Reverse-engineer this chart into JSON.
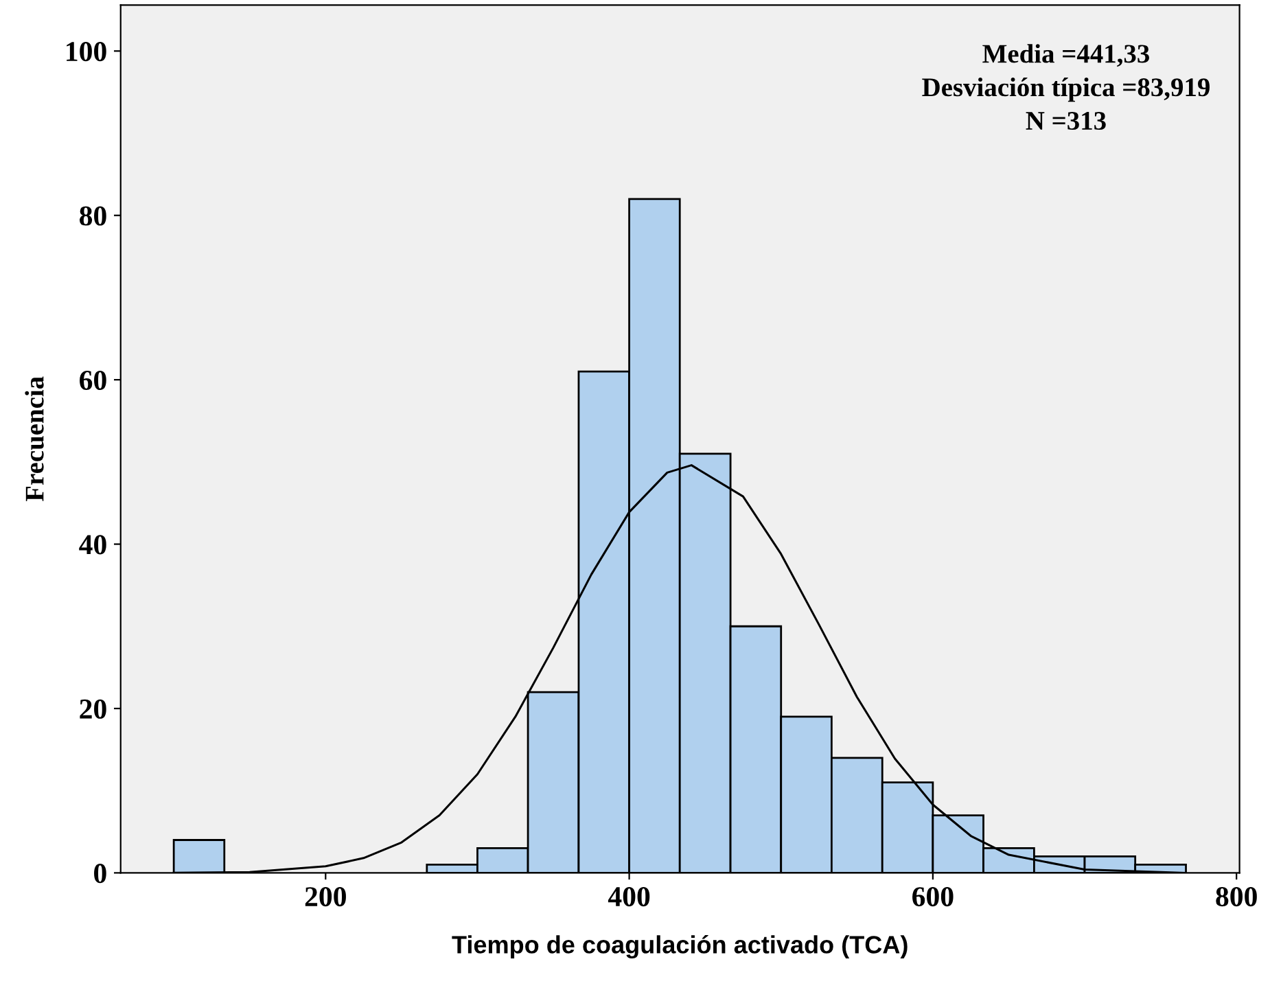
{
  "chart_data": {
    "type": "histogram",
    "xlabel": "Tiempo de coagulación activado (TCA)",
    "ylabel": "Frecuencia",
    "bins": [
      100,
      133.3,
      166.7,
      200,
      233.3,
      266.7,
      300,
      333.3,
      366.7,
      400,
      433.3,
      466.7,
      500,
      533.3,
      566.7,
      600,
      633.3,
      666.7,
      700,
      733.3,
      766.7
    ],
    "values": [
      4,
      0,
      0,
      0,
      0,
      1,
      3,
      22,
      61,
      82,
      51,
      30,
      19,
      14,
      11,
      7,
      3,
      2,
      2,
      1
    ],
    "color": "#b0d0ee",
    "series": [
      {
        "type": "line",
        "color": "#000000",
        "x": [
          100,
          150,
          200,
          225,
          250,
          275,
          300,
          325,
          350,
          375,
          400,
          425,
          441,
          475,
          500,
          525,
          550,
          575,
          600,
          625,
          650,
          700,
          766
        ],
        "values": [
          0,
          0.1,
          0.8,
          1.8,
          3.7,
          7.0,
          12.0,
          19.0,
          27.4,
          36.3,
          43.9,
          48.7,
          49.6,
          45.8,
          38.8,
          30.2,
          21.4,
          13.9,
          8.3,
          4.5,
          2.2,
          0.4,
          0
        ]
      }
    ],
    "annotations": [
      "Media =441,33",
      "Desviación típica =83,919",
      "N =313"
    ],
    "xlim": [
      65,
      802
    ],
    "ylim": [
      0,
      105.6
    ],
    "xticks": [
      200,
      400,
      600,
      800
    ],
    "yticks": [
      0,
      20,
      40,
      60,
      80,
      100
    ],
    "grid": false,
    "legend": false
  }
}
